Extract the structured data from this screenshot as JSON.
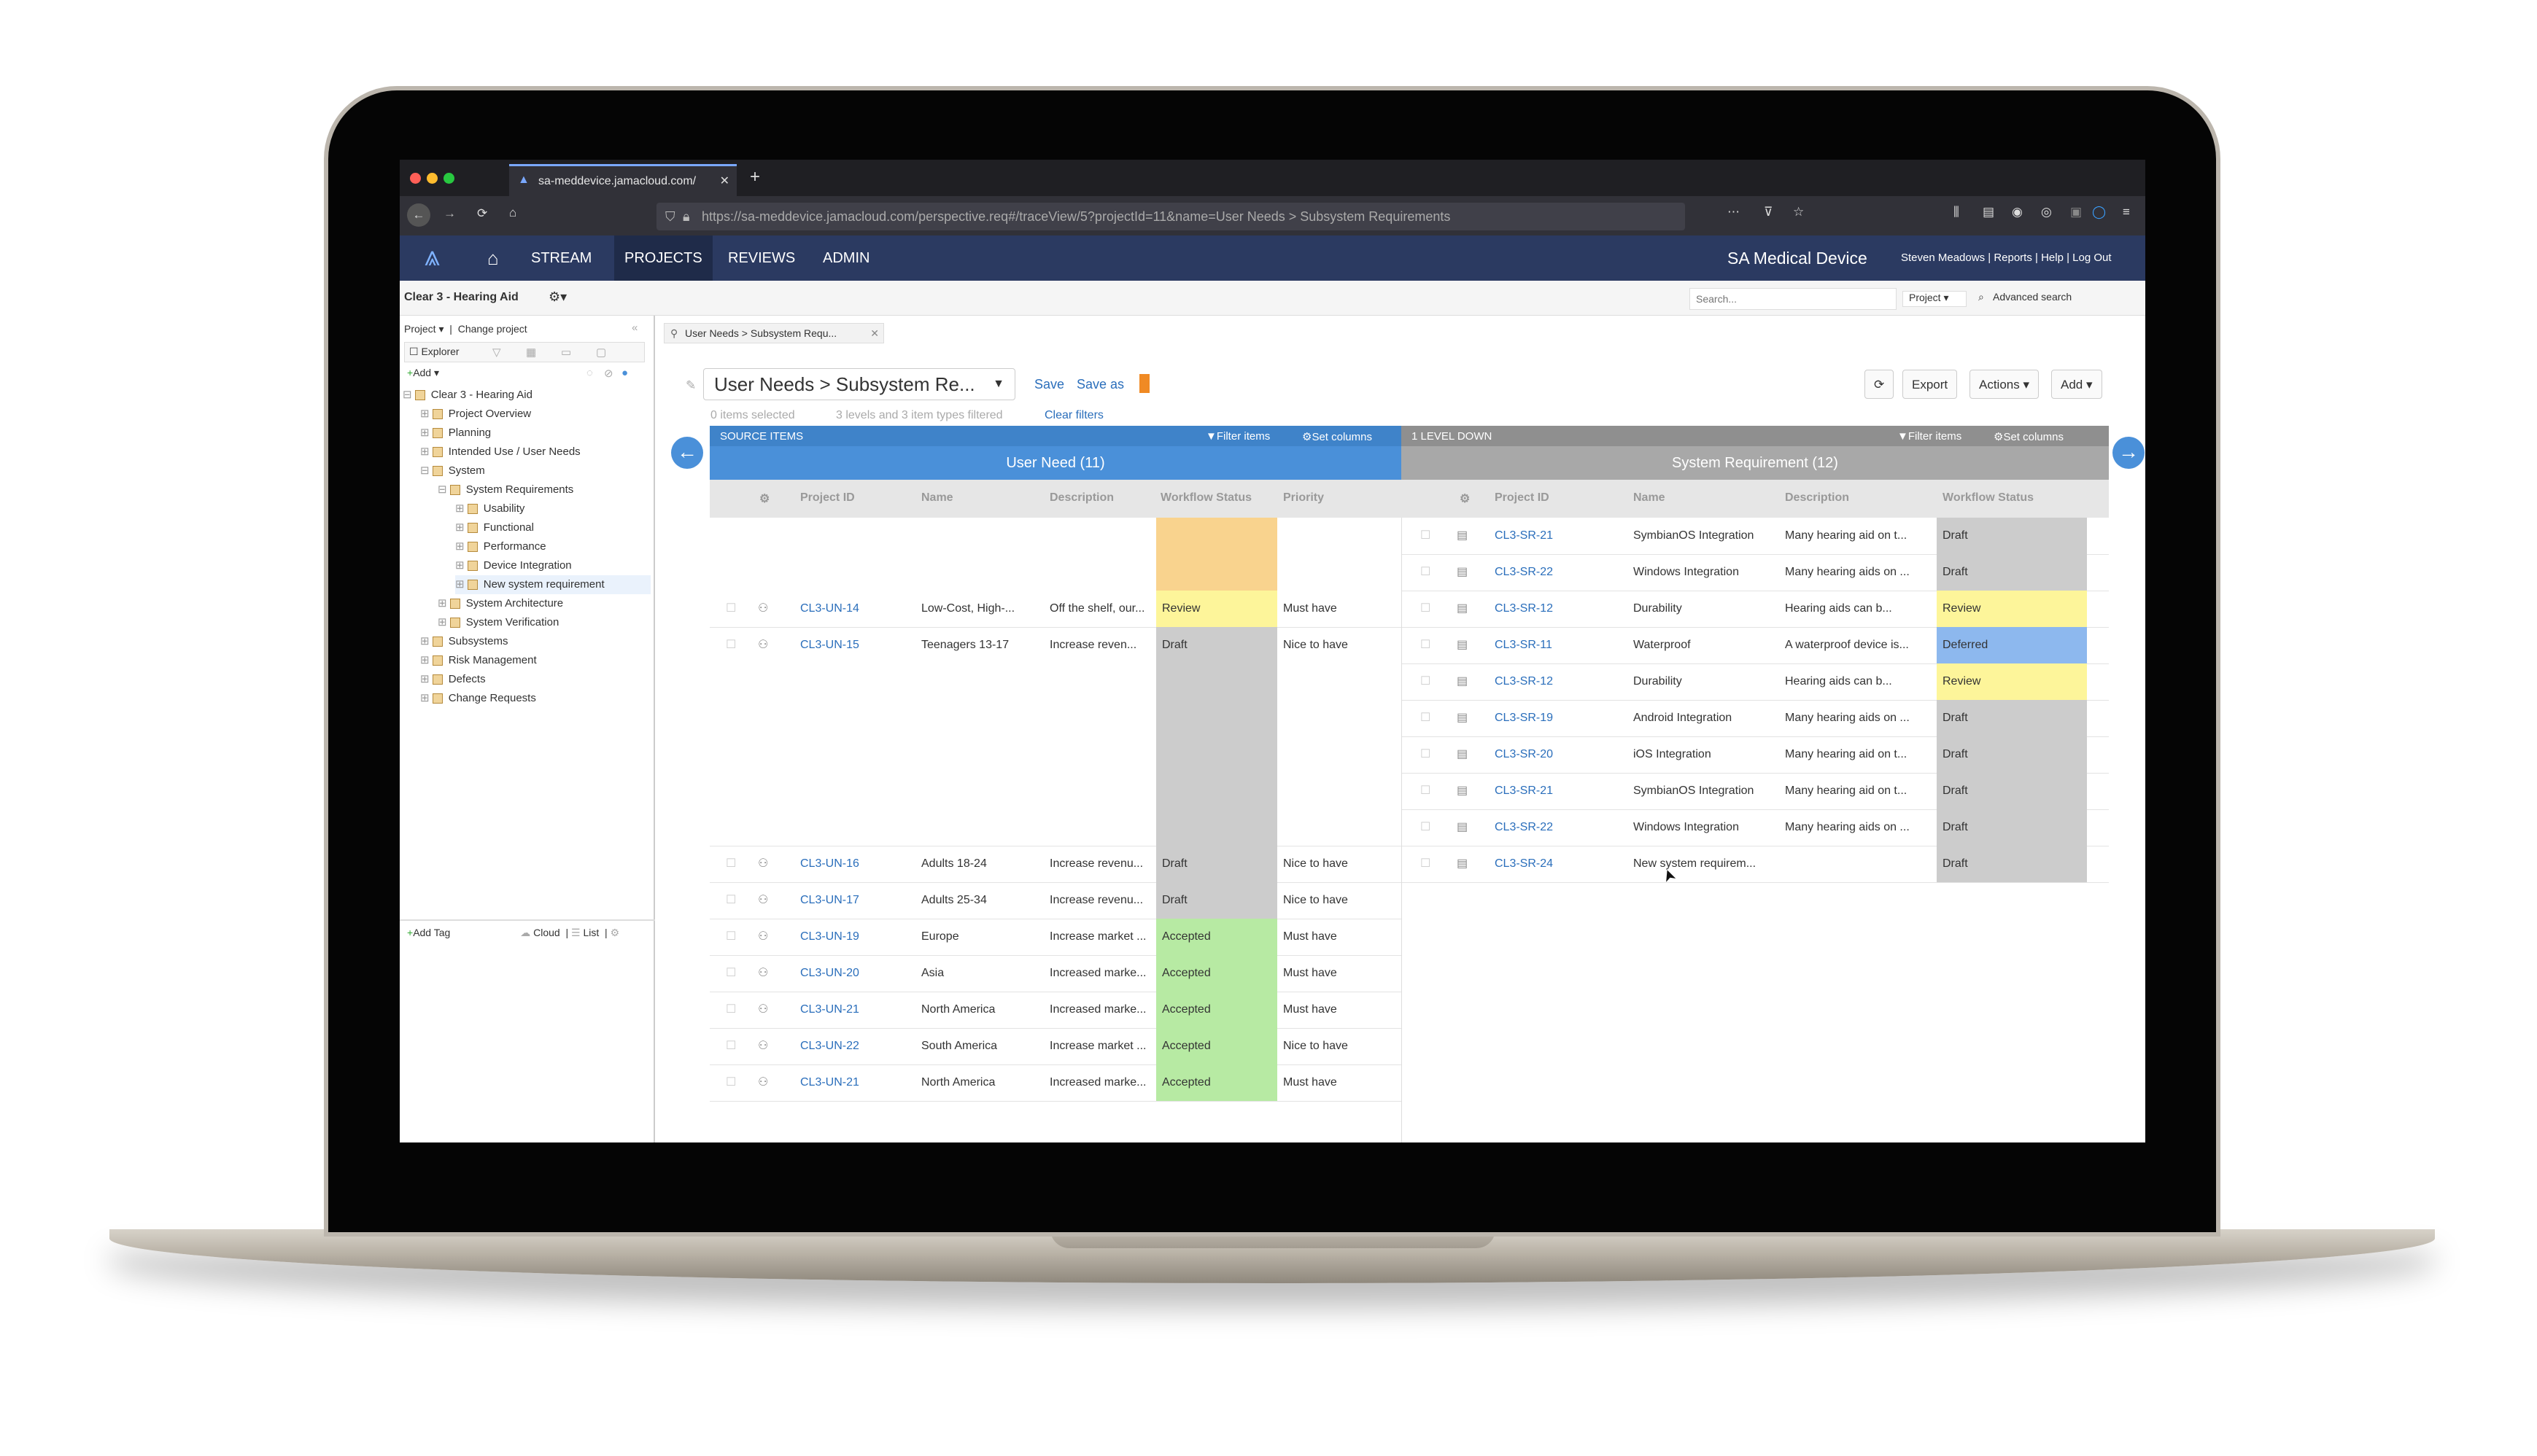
{
  "browser": {
    "tab_title": "sa-meddevice.jamacloud.com/",
    "url": "https://sa-meddevice.jamacloud.com/perspective.req#/traceView/5?projectId=11&name=User Needs > Subsystem Requirements"
  },
  "app": {
    "nav": [
      "STREAM",
      "PROJECTS",
      "REVIEWS",
      "ADMIN"
    ],
    "org": "SA Medical Device",
    "user_links": [
      "Steven Meadows",
      "Reports",
      "Help",
      "Log Out"
    ],
    "search_placeholder": "Search...",
    "search_scope": "Project",
    "advanced_search": "Advanced search",
    "project_name": "Clear 3 - Hearing Aid"
  },
  "sidebar": {
    "project_label": "Project",
    "change_project": "Change project",
    "explorer_label": "Explorer",
    "add_label": "Add",
    "tree": [
      {
        "label": "Clear 3 - Hearing Aid",
        "level": 0
      },
      {
        "label": "Project Overview",
        "level": 1
      },
      {
        "label": "Planning",
        "level": 1
      },
      {
        "label": "Intended Use / User Needs",
        "level": 1
      },
      {
        "label": "System",
        "level": 1
      },
      {
        "label": "System Requirements",
        "level": 2
      },
      {
        "label": "Usability",
        "level": 3
      },
      {
        "label": "Functional",
        "level": 3
      },
      {
        "label": "Performance",
        "level": 3
      },
      {
        "label": "Device Integration",
        "level": 3
      },
      {
        "label": "New system requirement",
        "level": 3
      },
      {
        "label": "System Architecture",
        "level": 2
      },
      {
        "label": "System Verification",
        "level": 2
      },
      {
        "label": "Subsystems",
        "level": 1
      },
      {
        "label": "Risk Management",
        "level": 1
      },
      {
        "label": "Defects",
        "level": 1
      },
      {
        "label": "Change Requests",
        "level": 1
      }
    ],
    "tags": [
      "Add Tag",
      "Cloud",
      "List"
    ]
  },
  "view": {
    "tab_label": "User Needs > Subsystem Requ...",
    "view_name": "User Needs > Subsystem Re...",
    "save": "Save",
    "save_as": "Save as",
    "selection_status": "0 items selected",
    "filter_status": "3 levels and 3 item types filtered",
    "clear_filters": "Clear filters",
    "export": "Export",
    "actions": "Actions",
    "add": "Add"
  },
  "source": {
    "header": "SOURCE ITEMS",
    "filter": "Filter items",
    "set_columns": "Set columns",
    "type_title": "User Need",
    "count": "(11)",
    "columns": [
      "Project ID",
      "Name",
      "Description",
      "Workflow Status",
      "Priority"
    ]
  },
  "target": {
    "header": "1 LEVEL DOWN",
    "filter": "Filter items",
    "set_columns": "Set columns",
    "type_title": "System Requirement",
    "count": "(12)",
    "columns": [
      "Project ID",
      "Name",
      "Description",
      "Workflow Status"
    ]
  },
  "source_rows": [
    {
      "id": "CL3-UN-14",
      "name": "Low-Cost, High-...",
      "desc": "Off the shelf, our...",
      "status": "Review",
      "priority": "Must have"
    },
    {
      "id": "CL3-UN-15",
      "name": "Teenagers 13-17",
      "desc": "Increase reven...",
      "status": "Draft",
      "priority": "Nice to have"
    },
    {
      "id": "CL3-UN-16",
      "name": "Adults 18-24",
      "desc": "Increase revenu...",
      "status": "Draft",
      "priority": "Nice to have"
    },
    {
      "id": "CL3-UN-17",
      "name": "Adults 25-34",
      "desc": "Increase revenu...",
      "status": "Draft",
      "priority": "Nice to have"
    },
    {
      "id": "CL3-UN-19",
      "name": "Europe",
      "desc": "Increase market ...",
      "status": "Accepted",
      "priority": "Must have"
    },
    {
      "id": "CL3-UN-20",
      "name": "Asia",
      "desc": "Increased marke...",
      "status": "Accepted",
      "priority": "Must have"
    },
    {
      "id": "CL3-UN-21",
      "name": "North America",
      "desc": "Increased marke...",
      "status": "Accepted",
      "priority": "Must have"
    },
    {
      "id": "CL3-UN-22",
      "name": "South America",
      "desc": "Increase market ...",
      "status": "Accepted",
      "priority": "Nice to have"
    },
    {
      "id": "CL3-UN-21",
      "name": "North America",
      "desc": "Increased marke...",
      "status": "Accepted",
      "priority": "Must have"
    }
  ],
  "target_rows": [
    {
      "id": "CL3-SR-21",
      "name": "SymbianOS Integration",
      "desc": "Many hearing aid on t...",
      "status": "Draft"
    },
    {
      "id": "CL3-SR-22",
      "name": "Windows Integration",
      "desc": "Many hearing aids on ...",
      "status": "Draft"
    },
    {
      "id": "CL3-SR-12",
      "name": "Durability",
      "desc": "Hearing aids can b...",
      "status": "Review"
    },
    {
      "id": "CL3-SR-11",
      "name": "Waterproof",
      "desc": "A waterproof device is...",
      "status": "Deferred"
    },
    {
      "id": "CL3-SR-12",
      "name": "Durability",
      "desc": "Hearing aids can b...",
      "status": "Review"
    },
    {
      "id": "CL3-SR-19",
      "name": "Android Integration",
      "desc": "Many hearing aids on ...",
      "status": "Draft"
    },
    {
      "id": "CL3-SR-20",
      "name": "iOS Integration",
      "desc": "Many hearing aid on t...",
      "status": "Draft"
    },
    {
      "id": "CL3-SR-21",
      "name": "SymbianOS Integration",
      "desc": "Many hearing aid on t...",
      "status": "Draft"
    },
    {
      "id": "CL3-SR-22",
      "name": "Windows Integration",
      "desc": "Many hearing aids on ...",
      "status": "Draft"
    },
    {
      "id": "CL3-SR-24",
      "name": "New system requirem...",
      "desc": "",
      "status": "Draft"
    }
  ],
  "status_colors": {
    "Draft": "#cccccc",
    "Review": "#fdf59a",
    "Accepted": "#b7eaa3",
    "Deferred": "#8db8ee",
    "Pending": "#f9d38e"
  },
  "colors": {
    "nav_bg": "#2b3a61",
    "source_header": "#4a90d9",
    "target_header": "#8f8f8f",
    "link": "#2a6ebb"
  }
}
